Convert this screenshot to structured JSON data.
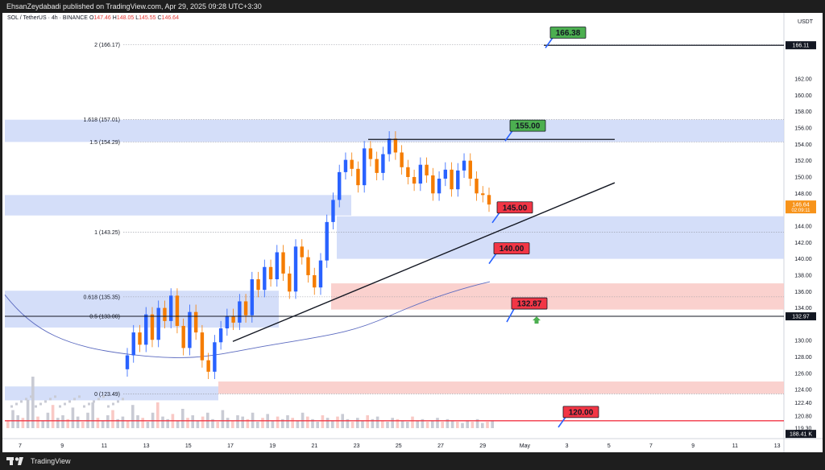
{
  "header": {
    "publisher_line": "EhsanZeydabadi published on TradingView.com, Apr 29, 2025 09:28 UTC+3:30"
  },
  "symbol": {
    "name": "SOL / TetherUS · 4h · BINANCE",
    "o_label": "O",
    "o_value": "147.46",
    "h_label": "H",
    "h_value": "148.05",
    "l_label": "L",
    "l_value": "145.55",
    "c_label": "C",
    "c_value": "146.64"
  },
  "currency": "USDT",
  "footer": {
    "brand": "TradingView"
  },
  "fib_levels": [
    {
      "label": "2 (166.17)",
      "price": 166.17
    },
    {
      "label": "1.618 (157.01)",
      "price": 157.01
    },
    {
      "label": "1.5 (154.29)",
      "price": 154.29
    },
    {
      "label": "1 (143.25)",
      "price": 143.25
    },
    {
      "label": "0.618 (135.35)",
      "price": 135.35
    },
    {
      "label": "0.5 (133.00)",
      "price": 133.0
    },
    {
      "label": "0 (123.49)",
      "price": 123.49
    }
  ],
  "callouts": [
    {
      "text": "166.38",
      "price": 166.38,
      "color": "#4caf50"
    },
    {
      "text": "155.00",
      "price": 155.0,
      "color": "#4caf50"
    },
    {
      "text": "145.00",
      "price": 145.0,
      "color": "#f23645"
    },
    {
      "text": "140.00",
      "price": 140.0,
      "color": "#f23645"
    },
    {
      "text": "132.87",
      "price": 132.87,
      "color": "#f23645"
    },
    {
      "text": "120.00",
      "price": 120.0,
      "color": "#f23645"
    }
  ],
  "price_axis": {
    "ticks": [
      "162.00",
      "160.00",
      "158.00",
      "156.00",
      "154.00",
      "152.00",
      "150.00",
      "148.00",
      "144.00",
      "142.00",
      "140.00",
      "138.00",
      "136.00",
      "134.00",
      "130.00",
      "128.00",
      "126.00",
      "124.00",
      "122.40",
      "120.80",
      "119.30"
    ],
    "tick_values": [
      162,
      160,
      158,
      156,
      154,
      152,
      150,
      148,
      144,
      142,
      140,
      138,
      136,
      134,
      130,
      128,
      126,
      124,
      122.4,
      120.8,
      119.3
    ],
    "badges": [
      {
        "text": "166.11",
        "price": 166.11,
        "bg": "#131722"
      },
      {
        "text": "146.64",
        "sub": "02:09:11",
        "price": 146.64,
        "bg": "#f7931a"
      },
      {
        "text": "132.97",
        "price": 132.97,
        "bg": "#131722"
      },
      {
        "text": "188.41 K",
        "price": 118.6,
        "bg": "#131722"
      }
    ]
  },
  "time_axis": {
    "labels": [
      "7",
      "9",
      "11",
      "13",
      "15",
      "17",
      "19",
      "21",
      "23",
      "25",
      "27",
      "29",
      "May",
      "3",
      "5",
      "7",
      "9",
      "11",
      "13"
    ]
  },
  "colors": {
    "up": "#2962ff",
    "down": "#f57c00",
    "fib_zone": "#c9d6f7",
    "sell_zone": "#f9c9c5",
    "ma": "#5c6bc0",
    "arrow_up": "#4caf50"
  },
  "chart_data": {
    "type": "candlestick",
    "title": "SOL / TetherUS · 4h · BINANCE",
    "ylim": [
      118.6,
      168.5
    ],
    "note_source": "visible on screen",
    "closes": [
      128.2,
      131.0,
      129.5,
      133.2,
      130.1,
      134.0,
      132.4,
      135.5,
      131.8,
      129.1,
      133.5,
      131.0,
      127.6,
      126.2,
      129.8,
      131.5,
      133.0,
      132.2,
      134.8,
      133.1,
      137.5,
      136.2,
      139.0,
      137.5,
      140.8,
      138.2,
      136.0,
      141.5,
      140.2,
      138.0,
      136.5,
      139.8,
      144.5,
      147.2,
      150.6,
      152.1,
      151.0,
      149.0,
      153.5,
      152.2,
      150.5,
      152.8,
      154.7,
      153.0,
      151.2,
      150.0,
      149.2,
      151.5,
      150.2,
      148.0,
      149.8,
      150.9,
      148.5,
      150.8,
      152.0,
      149.8,
      148.0,
      147.8,
      146.64
    ]
  }
}
